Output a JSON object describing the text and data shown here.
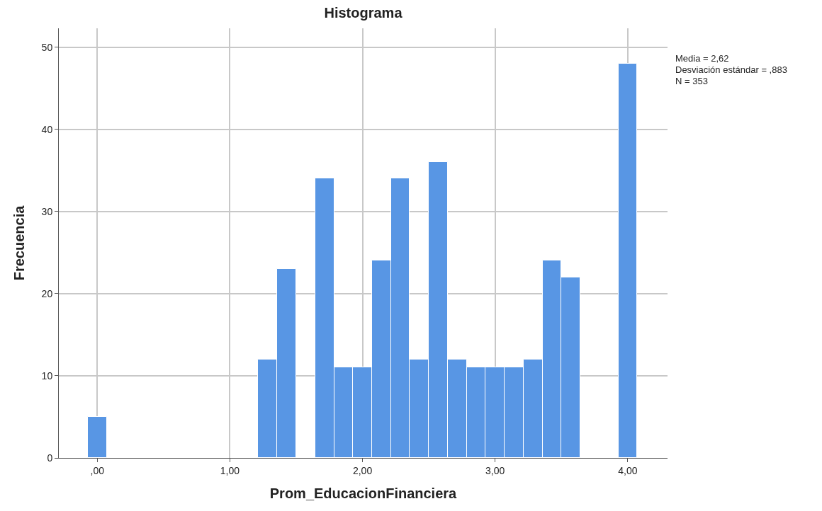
{
  "chart_data": {
    "type": "histogram",
    "title": "Histograma",
    "xlabel": "Prom_EducacionFinanciera",
    "ylabel": "Frecuencia",
    "bins": [
      -0.071,
      0.071,
      0.214,
      0.357,
      0.5,
      0.643,
      0.786,
      0.929,
      1.071,
      1.214,
      1.357,
      1.5,
      1.643,
      1.786,
      1.929,
      2.071,
      2.214,
      2.357,
      2.5,
      2.643,
      2.786,
      2.929,
      3.071,
      3.214,
      3.357,
      3.5,
      3.643,
      3.786,
      3.929,
      4.071
    ],
    "values": [
      5,
      0,
      0,
      0,
      0,
      0,
      0,
      0,
      0,
      12,
      23,
      0,
      34,
      11,
      11,
      24,
      34,
      12,
      36,
      12,
      11,
      11,
      11,
      12,
      24,
      22,
      0,
      0,
      48
    ],
    "color": "#5896e4",
    "xlim": [
      -0.29,
      4.3
    ],
    "xticks": [
      {
        "value": 0,
        "label": ",00"
      },
      {
        "value": 1,
        "label": "1,00"
      },
      {
        "value": 2,
        "label": "2,00"
      },
      {
        "value": 3,
        "label": "3,00"
      },
      {
        "value": 4,
        "label": "4,00"
      }
    ],
    "ylim": [
      0,
      52.3
    ],
    "yticks": [
      0,
      10,
      20,
      30,
      40,
      50
    ],
    "grid": true,
    "annotations": [
      "Media = 2,62",
      "Desviación estándar = ,883",
      "N = 353"
    ]
  }
}
